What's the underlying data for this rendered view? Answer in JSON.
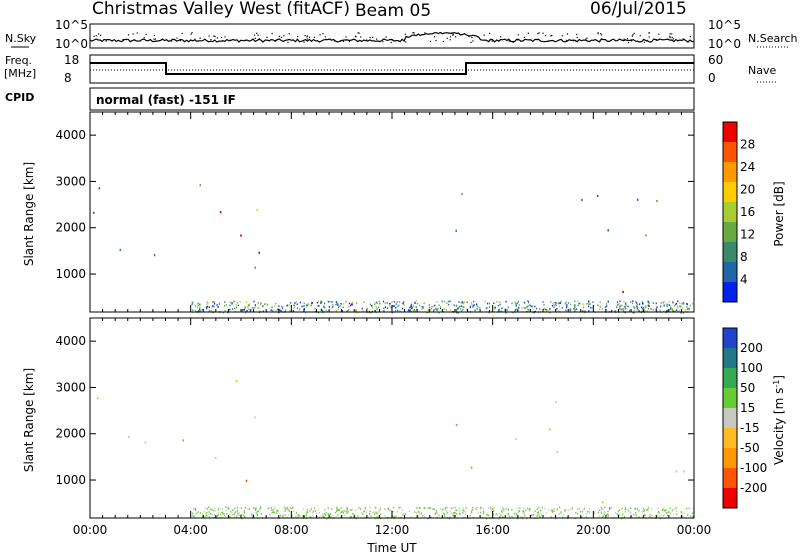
{
  "header": {
    "station": "Christmas Valley West (fitACF)",
    "beam": "Beam 05",
    "date": "06/Jul/2015"
  },
  "noise_panel": {
    "left_label": "N.Sky",
    "right_label": "N.Search",
    "left_ticks": [
      "10^5",
      "10^0"
    ],
    "right_ticks": [
      "10^5",
      "10^0"
    ]
  },
  "freq_panel": {
    "left_label_1": "Freq.",
    "left_label_2": "[MHz]",
    "right_label": "Nave",
    "left_ticks": [
      "18",
      "8"
    ],
    "right_ticks": [
      "60",
      "0"
    ]
  },
  "cpid": {
    "label": "CPID",
    "mode": "normal (fast) -151 IF"
  },
  "colors": {
    "power": [
      "#0022ee",
      "#2266aa",
      "#3a8a6a",
      "#66aa44",
      "#aacc33",
      "#ffcc00",
      "#ff9900",
      "#ff5500",
      "#ee0000"
    ],
    "velocity": [
      "#ee0000",
      "#ff5500",
      "#ff9900",
      "#ffbb22",
      "#c8c8c0",
      "#66cc33",
      "#33aa55",
      "#227788",
      "#2244cc"
    ]
  },
  "chart_data": [
    {
      "type": "heatmap",
      "name": "power-panel",
      "ylabel": "Slant Range [km]",
      "yticks": [
        "4000",
        "3000",
        "2000",
        "1000"
      ],
      "xticks": [
        "00:00",
        "04:00",
        "08:00",
        "12:00",
        "16:00",
        "20:00",
        "00:00"
      ],
      "colorbar_label": "Power [dB]",
      "colorbar_ticks": [
        "28",
        "24",
        "20",
        "16",
        "12",
        "8",
        "4"
      ],
      "ylim": [
        180,
        4500
      ],
      "xlim_hours": [
        0,
        24
      ],
      "scatter_regions_hours_km": [
        {
          "t0": 3.0,
          "t1": 7.0,
          "r0": 1200,
          "r1": 2400,
          "level": 8
        },
        {
          "t0": 3.2,
          "t1": 6.3,
          "r0": 2800,
          "r1": 3400,
          "level": 4
        },
        {
          "t0": 6.5,
          "t1": 8.0,
          "r0": 2300,
          "r1": 3100,
          "level": 4
        },
        {
          "t0": 5.5,
          "t1": 9.0,
          "r0": 800,
          "r1": 1300,
          "level": 3
        },
        {
          "t0": 19.5,
          "t1": 22.0,
          "r0": 500,
          "r1": 1000,
          "level": 7
        },
        {
          "t0": 14.5,
          "t1": 24.0,
          "r0": 1200,
          "r1": 2800,
          "level": 2
        },
        {
          "t0": 0.0,
          "t1": 3.0,
          "r0": 1200,
          "r1": 3300,
          "level": 2
        }
      ]
    },
    {
      "type": "heatmap",
      "name": "velocity-panel",
      "ylabel": "Slant Range [km]",
      "yticks": [
        "4000",
        "3000",
        "2000",
        "1000"
      ],
      "xticks": [
        "00:00",
        "04:00",
        "08:00",
        "12:00",
        "16:00",
        "20:00",
        "00:00"
      ],
      "xlabel": "Time UT",
      "colorbar_label": "Velocity [m s",
      "colorbar_label_sup": "-1",
      "colorbar_label_end": "]",
      "colorbar_ticks": [
        "200",
        "100",
        "50",
        "15",
        "-15",
        "-50",
        "-100",
        "-200"
      ],
      "ylim": [
        180,
        4500
      ],
      "xlim_hours": [
        0,
        24
      ],
      "scatter_regions_hours_km": [
        {
          "t0": 3.0,
          "t1": 7.0,
          "r0": 1300,
          "r1": 2300,
          "level": 4
        },
        {
          "t0": 3.2,
          "t1": 6.5,
          "r0": 2800,
          "r1": 3400,
          "level": 3
        },
        {
          "t0": 6.5,
          "t1": 8.0,
          "r0": 2300,
          "r1": 3100,
          "level": 3
        },
        {
          "t0": 8.0,
          "t1": 8.8,
          "r0": 1600,
          "r1": 2200,
          "level": 0
        },
        {
          "t0": 5.5,
          "t1": 9.5,
          "r0": 800,
          "r1": 1300,
          "level": 1
        },
        {
          "t0": 19.5,
          "t1": 22.5,
          "r0": 500,
          "r1": 1100,
          "level": 4
        },
        {
          "t0": 14.5,
          "t1": 24.0,
          "r0": 1200,
          "r1": 2800,
          "level": 4
        },
        {
          "t0": 0.0,
          "t1": 3.0,
          "r0": 1300,
          "r1": 3300,
          "level": 4
        }
      ]
    }
  ]
}
